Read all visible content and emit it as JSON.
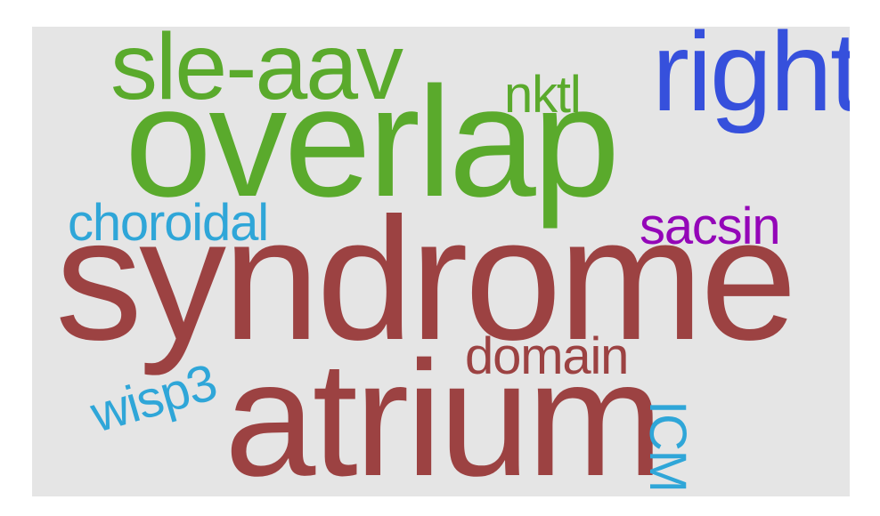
{
  "words": [
    {
      "text": "sle-aav",
      "color": "#5aaa2c"
    },
    {
      "text": "right",
      "color": "#3650dc"
    },
    {
      "text": "nktl",
      "color": "#5aaa2c"
    },
    {
      "text": "overlap",
      "color": "#5aaa2c"
    },
    {
      "text": "choroidal",
      "color": "#2fa6d8"
    },
    {
      "text": "sacsin",
      "color": "#9406b8"
    },
    {
      "text": "syndrome",
      "color": "#9c4242"
    },
    {
      "text": "domain",
      "color": "#9c4242"
    },
    {
      "text": "atrium",
      "color": "#9c4242"
    },
    {
      "text": "wisp3",
      "color": "#2fa6d8"
    },
    {
      "text": "ICM",
      "color": "#2fa6d8"
    }
  ]
}
